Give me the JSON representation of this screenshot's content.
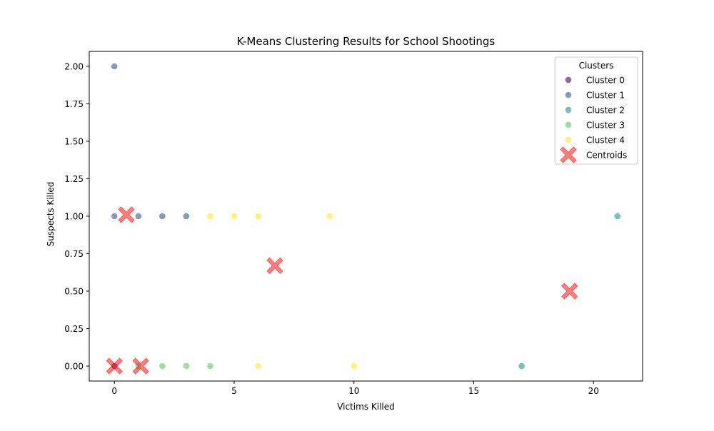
{
  "chart_data": {
    "type": "scatter",
    "title": "K-Means Clustering Results for School Shootings",
    "xlabel": "Victims Killed",
    "ylabel": "Suspects Killed",
    "xlim": [
      -1.05,
      22.05
    ],
    "ylim": [
      -0.1,
      2.1
    ],
    "xticks": [
      0,
      5,
      10,
      15,
      20
    ],
    "xtick_labels": [
      "0",
      "5",
      "10",
      "15",
      "20"
    ],
    "yticks": [
      0,
      0.25,
      0.5,
      0.75,
      1.0,
      1.25,
      1.5,
      1.75,
      2.0
    ],
    "ytick_labels": [
      "0.00",
      "0.25",
      "0.50",
      "0.75",
      "1.00",
      "1.25",
      "1.50",
      "1.75",
      "2.00"
    ],
    "grid": false,
    "legend": {
      "title": "Clusters",
      "placement": "upper right"
    },
    "series": [
      {
        "name": "Cluster 0",
        "color": "#440154",
        "points": [
          [
            0,
            0
          ]
        ]
      },
      {
        "name": "Cluster 1",
        "color": "#3b528b",
        "points": [
          [
            0,
            2
          ],
          [
            0,
            1
          ],
          [
            1,
            1
          ],
          [
            2,
            1
          ],
          [
            3,
            1
          ]
        ]
      },
      {
        "name": "Cluster 2",
        "color": "#21918c",
        "points": [
          [
            17,
            0
          ],
          [
            21,
            1
          ]
        ]
      },
      {
        "name": "Cluster 3",
        "color": "#5ec962",
        "points": [
          [
            1,
            0
          ],
          [
            2,
            0
          ],
          [
            3,
            0
          ],
          [
            4,
            0
          ]
        ]
      },
      {
        "name": "Cluster 4",
        "color": "#fde725",
        "points": [
          [
            4,
            1
          ],
          [
            5,
            1
          ],
          [
            6,
            1
          ],
          [
            9,
            1
          ],
          [
            6,
            0
          ],
          [
            10,
            0
          ]
        ]
      }
    ],
    "centroids": {
      "name": "Centroids",
      "color": "#ff0000",
      "points": [
        [
          0,
          0
        ],
        [
          1.1,
          0
        ],
        [
          0.5,
          1.01
        ],
        [
          6.7,
          0.67
        ],
        [
          19,
          0.5
        ]
      ]
    }
  }
}
